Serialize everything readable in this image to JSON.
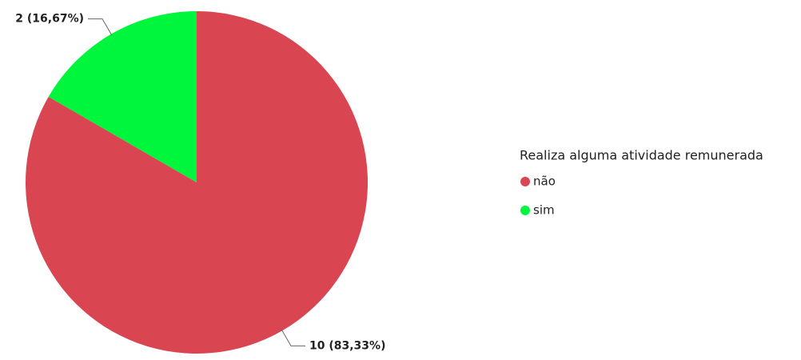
{
  "chart_data": {
    "type": "pie",
    "legend_title": "Realiza alguma atividade remunerada",
    "categories": [
      "não",
      "sim"
    ],
    "values": [
      10,
      2
    ],
    "value_labels": [
      "10 (83,33%)",
      "2 (16,67%)"
    ],
    "colors": [
      "#d94551",
      "#00f53d"
    ],
    "legend": "right"
  }
}
